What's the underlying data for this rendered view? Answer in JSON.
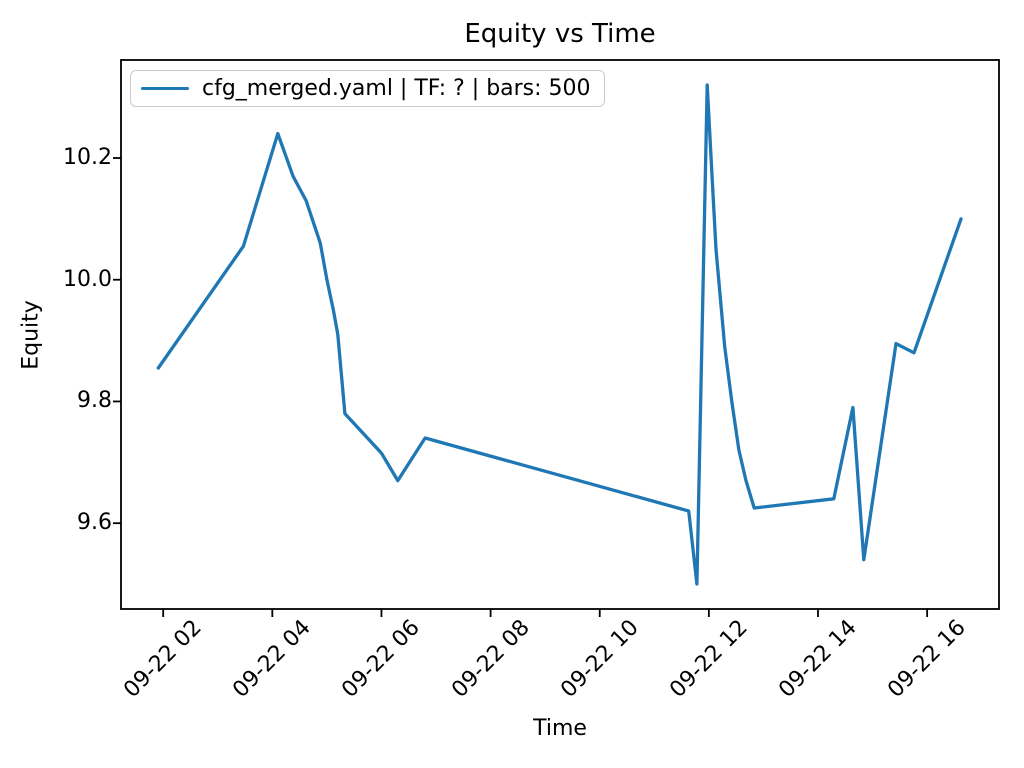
{
  "figure": {
    "background": "#ffffff",
    "spine_color": "#000000"
  },
  "chart_data": {
    "type": "line",
    "title": "Equity vs Time",
    "xlabel": "Time",
    "ylabel": "Equity",
    "grid": false,
    "legend_position": "upper-left",
    "legend": [
      {
        "label": "cfg_merged.yaml | TF: ? | bars: 500",
        "color": "#1f77b4"
      }
    ],
    "x_unit": "time on 09-22, decimal hours",
    "xlim": [
      1.227,
      17.317
    ],
    "ylim": [
      9.459,
      10.361
    ],
    "x_ticks": [
      {
        "hours": 2,
        "label": "09-22 02"
      },
      {
        "hours": 4,
        "label": "09-22 04"
      },
      {
        "hours": 6,
        "label": "09-22 06"
      },
      {
        "hours": 8,
        "label": "09-22 08"
      },
      {
        "hours": 10,
        "label": "09-22 10"
      },
      {
        "hours": 12,
        "label": "09-22 12"
      },
      {
        "hours": 14,
        "label": "09-22 14"
      },
      {
        "hours": 16,
        "label": "09-22 16"
      }
    ],
    "y_ticks": [
      {
        "value": 9.6,
        "label": "9.6"
      },
      {
        "value": 9.8,
        "label": "9.8"
      },
      {
        "value": 10.0,
        "label": "10.0"
      },
      {
        "value": 10.2,
        "label": "10.2"
      }
    ],
    "series": [
      {
        "name": "cfg_merged.yaml | TF: ? | bars: 500",
        "color": "#1f77b4",
        "line_width": 3.3,
        "points": [
          [
            1.91,
            9.855
          ],
          [
            3.47,
            10.055
          ],
          [
            4.1,
            10.24
          ],
          [
            4.38,
            10.17
          ],
          [
            4.62,
            10.13
          ],
          [
            4.88,
            10.06
          ],
          [
            5.0,
            10.0
          ],
          [
            5.12,
            9.95
          ],
          [
            5.2,
            9.91
          ],
          [
            5.33,
            9.78
          ],
          [
            6.0,
            9.715
          ],
          [
            6.3,
            9.67
          ],
          [
            6.8,
            9.74
          ],
          [
            11.63,
            9.62
          ],
          [
            11.78,
            9.5
          ],
          [
            11.97,
            10.32
          ],
          [
            12.07,
            10.15
          ],
          [
            12.13,
            10.05
          ],
          [
            12.2,
            9.98
          ],
          [
            12.29,
            9.89
          ],
          [
            12.42,
            9.8
          ],
          [
            12.55,
            9.72
          ],
          [
            12.68,
            9.67
          ],
          [
            12.83,
            9.625
          ],
          [
            14.29,
            9.64
          ],
          [
            14.64,
            9.79
          ],
          [
            14.84,
            9.54
          ],
          [
            15.43,
            9.895
          ],
          [
            15.76,
            9.88
          ],
          [
            16.62,
            10.1
          ]
        ]
      }
    ]
  }
}
